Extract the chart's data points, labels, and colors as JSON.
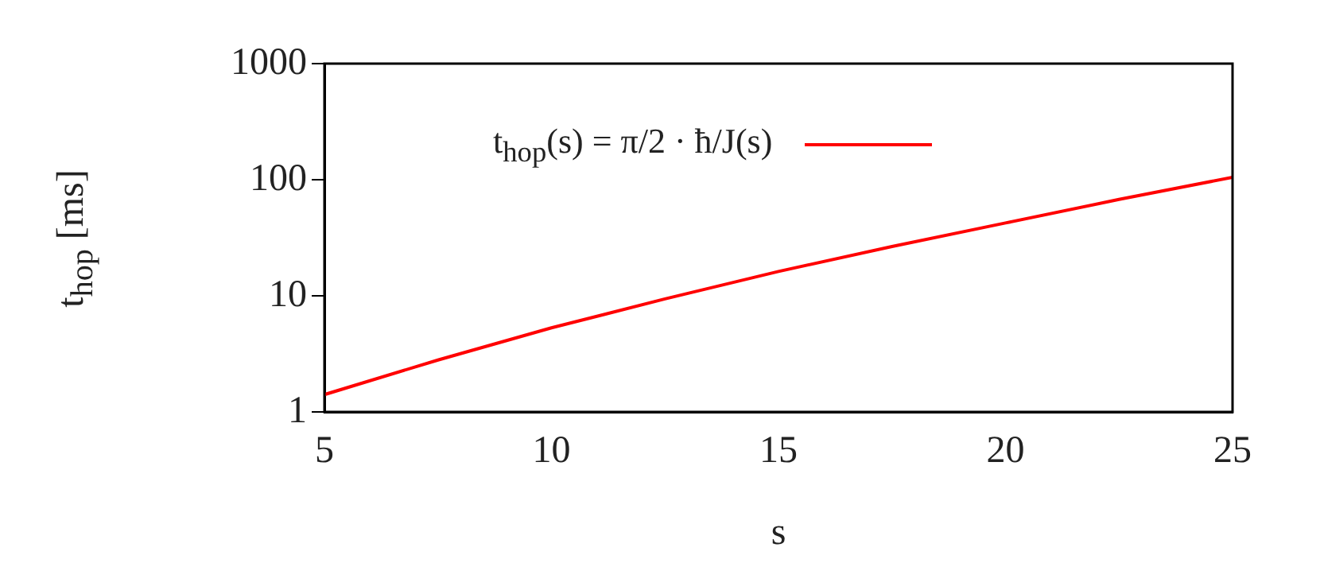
{
  "chart_data": {
    "type": "line",
    "xlabel": "s",
    "ylabel": "t$_{hop}$ [ms]",
    "x": [
      5,
      7.5,
      10,
      12.5,
      15,
      17.5,
      20,
      22.5,
      25
    ],
    "series": [
      {
        "name": "t$_{hop}$(s) = π/2 · ħ/J(s)",
        "color": "#ff0000",
        "values": [
          1.41,
          2.8,
          5.3,
          9.4,
          16.2,
          26.6,
          42.4,
          67.6,
          105
        ]
      }
    ],
    "xlim": [
      5,
      25
    ],
    "xticks": [
      5,
      10,
      15,
      20,
      25
    ],
    "ylim": [
      1,
      1000
    ],
    "yticks": [
      1,
      10,
      100,
      1000
    ],
    "log": "y",
    "grid": false,
    "legend": "top",
    "marker": "none",
    "line_style": "solid"
  }
}
